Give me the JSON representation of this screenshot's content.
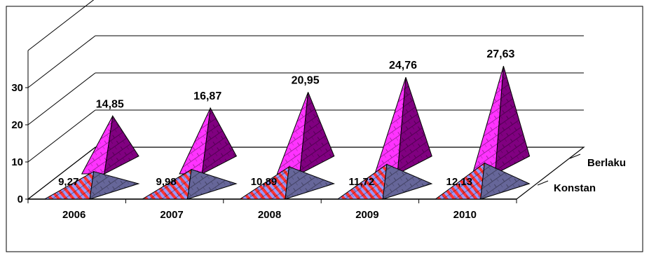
{
  "chart_data": {
    "type": "bar",
    "style": "3d-pyramid",
    "categories": [
      "2006",
      "2007",
      "2008",
      "2009",
      "2010"
    ],
    "series": [
      {
        "name": "Berlaku",
        "values": [
          14.85,
          16.87,
          20.95,
          24.76,
          27.63
        ],
        "labels": [
          "14,85",
          "16,87",
          "20,95",
          "24,76",
          "27,63"
        ],
        "color": "#cc00ff"
      },
      {
        "name": "Konstan",
        "values": [
          9.27,
          9.98,
          10.89,
          11.72,
          12.13
        ],
        "labels": [
          "9,27",
          "9,98",
          "10,89",
          "11,72",
          "12,13"
        ],
        "color": "#ff3333"
      }
    ],
    "y_ticks": [
      "0",
      "10",
      "20",
      "30"
    ],
    "ylim": [
      0,
      30
    ],
    "title": "",
    "xlabel": "",
    "ylabel": "",
    "grid": true,
    "legend": "right",
    "colors": {
      "berlaku_light": "#ff33ff",
      "berlaku_dark": "#800080",
      "konstan_light": "#ff3333",
      "konstan_stripe": "#9999ff",
      "konstan_dark": "#666699"
    }
  }
}
